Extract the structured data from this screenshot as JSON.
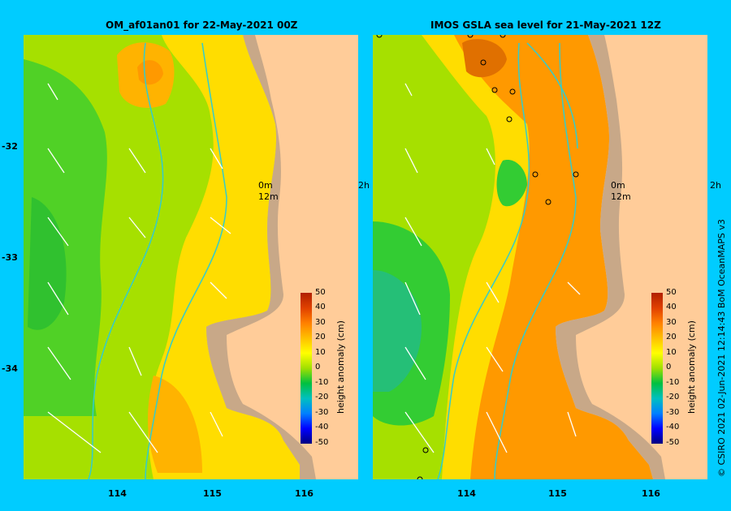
{
  "panels": {
    "left": {
      "title": "OM_af01an01  for 22-May-2021 00Z"
    },
    "right": {
      "title": "IMOS GSLA sea level  for 21-May-2021 12Z"
    }
  },
  "axes": {
    "lat_ticks": [
      "-32",
      "-33",
      "-34"
    ],
    "lon_ticks": [
      "114",
      "115",
      "116"
    ]
  },
  "legend": {
    "label": "height anomaly (cm)",
    "ticks": [
      "50",
      "40",
      "30",
      "20",
      "10",
      "0",
      "-10",
      "-20",
      "-30",
      "-40",
      "-50"
    ]
  },
  "annotations": {
    "ref_0m": "0m",
    "ref_12m": "12m",
    "edge_2h": "2h"
  },
  "credit": "© CSIRO 2021   02-Jun-2021 12:14:43 BoM OceanMAPS v3",
  "colors": {
    "background": "#00ccff",
    "land": "#ffcc99",
    "coast": "#c8a888",
    "contour": "#33cccc"
  }
}
